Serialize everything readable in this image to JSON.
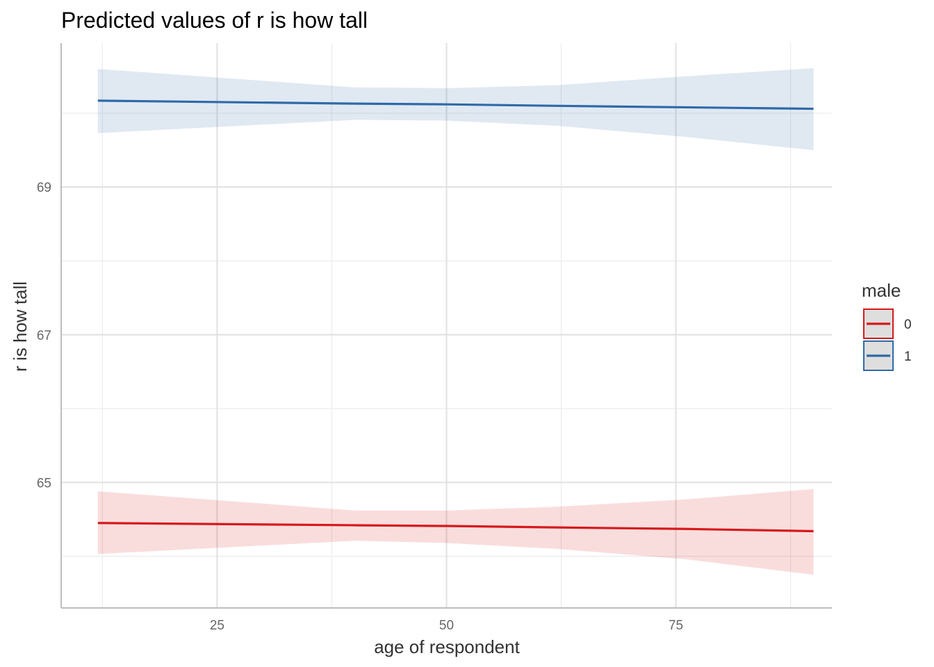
{
  "chart_data": {
    "type": "line",
    "title": "Predicted values of r is how tall",
    "xlabel": "age of respondent",
    "ylabel": "r is how tall",
    "xlim": [
      8,
      92
    ],
    "ylim": [
      63.3,
      70.95
    ],
    "x_ticks": [
      25,
      50,
      75
    ],
    "x_tick_labels": [
      "25",
      "50",
      "75"
    ],
    "y_ticks": [
      65,
      67,
      69
    ],
    "y_tick_labels": [
      "65",
      "67",
      "69"
    ],
    "grid": true,
    "legend": {
      "title": "male",
      "position": "right"
    },
    "series": [
      {
        "name": "0",
        "color": "#d7191c",
        "x": [
          12,
          40,
          50,
          62,
          76,
          90
        ],
        "y": [
          64.45,
          64.42,
          64.41,
          64.39,
          64.37,
          64.34
        ],
        "lower": [
          64.03,
          64.21,
          64.18,
          64.1,
          63.96,
          63.75
        ],
        "upper": [
          64.88,
          64.62,
          64.62,
          64.67,
          64.77,
          64.91
        ]
      },
      {
        "name": "1",
        "color": "#2e6aa8",
        "x": [
          12,
          40,
          50,
          62,
          76,
          90
        ],
        "y": [
          70.17,
          70.13,
          70.12,
          70.1,
          70.08,
          70.06
        ],
        "lower": [
          69.73,
          69.91,
          69.9,
          69.83,
          69.68,
          69.5
        ],
        "upper": [
          70.6,
          70.35,
          70.34,
          70.38,
          70.5,
          70.61
        ]
      }
    ]
  }
}
